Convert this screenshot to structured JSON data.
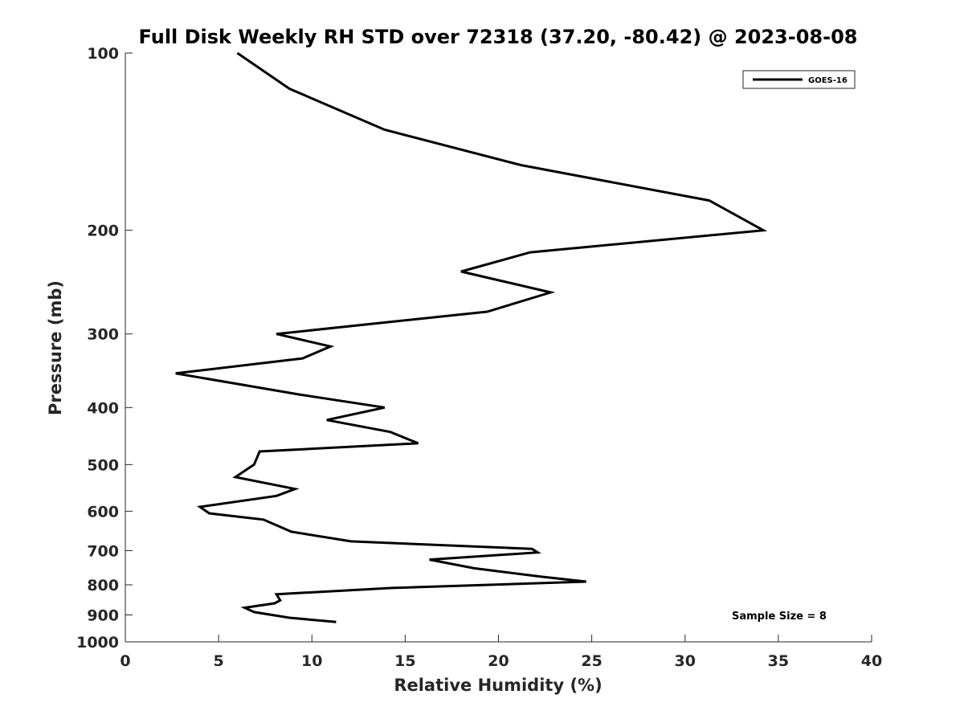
{
  "chart_data": {
    "type": "line",
    "title": "Full Disk Weekly RH STD over 72318 (37.20, -80.42) @ 2023-08-08",
    "xlabel": "Relative Humidity (%)",
    "ylabel": "Pressure (mb)",
    "xlim": [
      0,
      40
    ],
    "ylim": [
      1000,
      100
    ],
    "yscale": "log",
    "yreversed": true,
    "grid": false,
    "legend_position": "top-right",
    "x_ticks": [
      0,
      5,
      10,
      15,
      20,
      25,
      30,
      35,
      40
    ],
    "x_tick_labels": [
      "0",
      "5",
      "10",
      "15",
      "20",
      "25",
      "30",
      "35",
      "40"
    ],
    "y_ticks": [
      100,
      200,
      300,
      400,
      500,
      600,
      700,
      800,
      900,
      1000
    ],
    "y_tick_labels": [
      "100",
      "200",
      "300",
      "400",
      "500",
      "600",
      "700",
      "800",
      "900",
      "1000"
    ],
    "annotation": "Sample Size = 8",
    "series": [
      {
        "name": "GOES-16",
        "color": "#000000",
        "x": [
          6.0,
          8.8,
          13.9,
          21.2,
          31.3,
          34.2,
          21.7,
          18.0,
          22.8,
          19.4,
          8.1,
          11.0,
          9.5,
          2.7,
          9.3,
          13.9,
          10.8,
          14.2,
          15.7,
          7.2,
          6.9,
          5.9,
          9.1,
          8.1,
          4.0,
          4.5,
          7.4,
          8.9,
          12.1,
          21.8,
          22.1,
          16.3,
          18.7,
          22.3,
          24.7,
          14.3,
          8.1,
          8.2,
          8.3,
          8.0,
          6.4,
          6.9,
          8.8,
          11.3
        ],
        "y": [
          100,
          115,
          135,
          155,
          178,
          200,
          218,
          235,
          255,
          275,
          300,
          315,
          330,
          350,
          380,
          400,
          420,
          440,
          460,
          475,
          500,
          525,
          550,
          565,
          590,
          605,
          620,
          650,
          675,
          695,
          705,
          725,
          750,
          775,
          790,
          810,
          830,
          840,
          850,
          860,
          875,
          890,
          910,
          925
        ]
      }
    ]
  }
}
